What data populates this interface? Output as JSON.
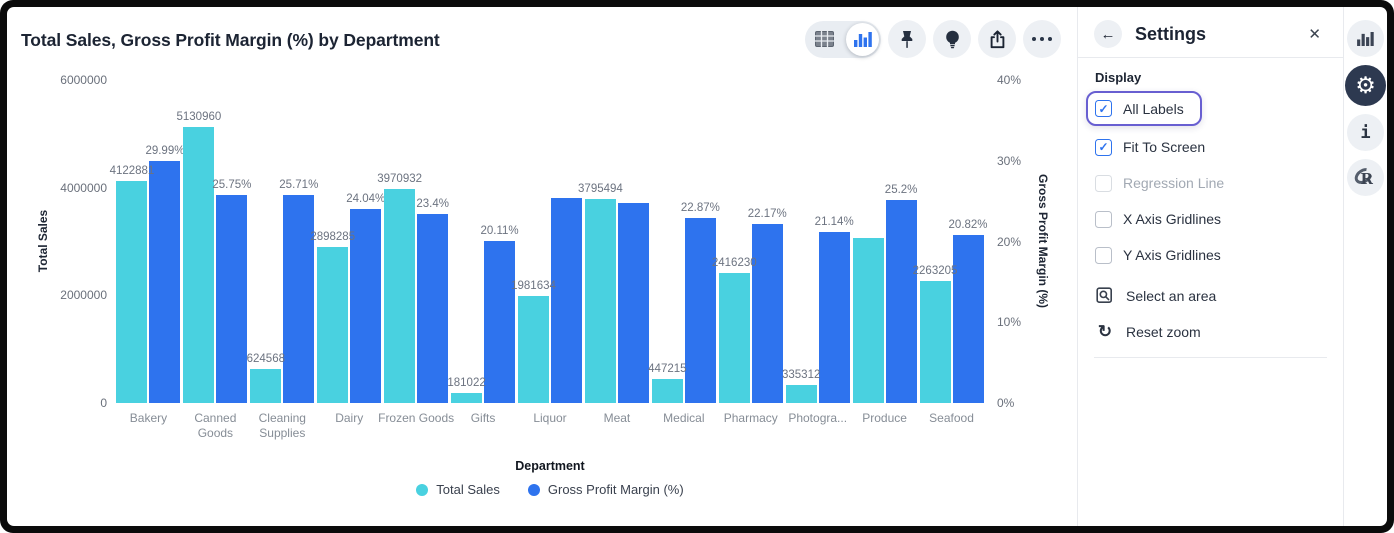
{
  "header": {
    "title": "Total Sales, Gross Profit Margin (%) by Department"
  },
  "toolbar": {
    "icons": [
      "table-grid-icon",
      "bar-chart-icon",
      "pin-icon",
      "lightbulb-icon",
      "share-icon",
      "ellipsis-icon"
    ]
  },
  "settings": {
    "title": "Settings",
    "back_icon": "←",
    "close_icon": "✕",
    "section": "Display",
    "items": [
      {
        "label": "All Labels",
        "checked": true,
        "disabled": false,
        "focused": true
      },
      {
        "label": "Fit To Screen",
        "checked": true,
        "disabled": false,
        "focused": false
      },
      {
        "label": "Regression Line",
        "checked": false,
        "disabled": true,
        "focused": false
      },
      {
        "label": "X Axis Gridlines",
        "checked": false,
        "disabled": false,
        "focused": false
      },
      {
        "label": "Y Axis Gridlines",
        "checked": false,
        "disabled": false,
        "focused": false
      }
    ],
    "actions": [
      {
        "label": "Select an area",
        "icon": "select-area-icon"
      },
      {
        "label": "Reset zoom",
        "icon": "reset-zoom-icon",
        "glyph": "↻"
      }
    ]
  },
  "legend": [
    {
      "label": "Total Sales",
      "color": "#49d1e0"
    },
    {
      "label": "Gross Profit Margin (%)",
      "color": "#2e73ee"
    }
  ],
  "rail": {
    "icons": [
      "bar-chart-icon",
      "gear-icon",
      "info-icon",
      "r-logo-icon"
    ]
  },
  "chart_data": {
    "type": "bar",
    "title": "Total Sales, Gross Profit Margin (%) by Department",
    "xlabel": "Department",
    "categories": [
      "Bakery",
      "Canned Goods",
      "Cleaning Supplies",
      "Dairy",
      "Frozen Goods",
      "Gifts",
      "Liquor",
      "Meat",
      "Medical",
      "Pharmacy",
      "Photogra...",
      "Produce",
      "Seafood"
    ],
    "series": [
      {
        "name": "Total Sales",
        "axis": "left",
        "color": "#49d1e0",
        "values": [
          4122881,
          5130960,
          624568,
          2898285,
          3970932,
          181022,
          1981634,
          3795494,
          447215,
          2416230,
          335312,
          3065000,
          2263205
        ],
        "labels": [
          "4122881",
          "5130960",
          "624568",
          "2898285",
          "3970932",
          "181022",
          "1981634",
          "3795494",
          "447215",
          "2416230",
          "335312",
          null,
          "2263205"
        ]
      },
      {
        "name": "Gross Profit Margin (%)",
        "axis": "right",
        "color": "#2e73ee",
        "values": [
          29.99,
          25.75,
          25.71,
          24.04,
          23.4,
          20.11,
          25.4,
          24.8,
          22.87,
          22.17,
          21.14,
          25.2,
          20.82
        ],
        "labels": [
          "29.99%",
          "25.75%",
          "25.71%",
          "24.04%",
          "23.4%",
          "20.11%",
          null,
          null,
          "22.87%",
          "22.17%",
          "21.14%",
          "25.2%",
          "20.82%"
        ]
      }
    ],
    "left_axis": {
      "label": "Total Sales",
      "max": 6000000,
      "ticks": [
        "6000000",
        "4000000",
        "2000000",
        "0"
      ]
    },
    "right_axis": {
      "label": "Gross Profit Margin (%)",
      "max": 40,
      "ticks": [
        "40%",
        "30%",
        "20%",
        "10%",
        "0%"
      ]
    },
    "gridlines": {
      "x": false,
      "y": false
    },
    "legend_position": "bottom"
  }
}
